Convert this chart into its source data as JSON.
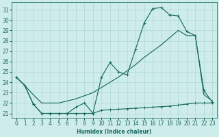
{
  "xlabel": "Humidex (Indice chaleur)",
  "ylabel": "",
  "bg_color": "#ceecea",
  "grid_color": "#aed8d4",
  "line_color": "#1a6b60",
  "x_ticks": [
    0,
    1,
    2,
    3,
    4,
    5,
    6,
    7,
    8,
    9,
    10,
    11,
    12,
    13,
    14,
    15,
    16,
    17,
    18,
    19,
    20,
    21,
    22,
    23
  ],
  "y_ticks": [
    21,
    22,
    23,
    24,
    25,
    26,
    27,
    28,
    29,
    30,
    31
  ],
  "ylim": [
    20.6,
    31.7
  ],
  "xlim": [
    -0.5,
    23.5
  ],
  "curve1_x": [
    0,
    1,
    2,
    3,
    4,
    5,
    6,
    7,
    8,
    9,
    10,
    11,
    12,
    13,
    14,
    15,
    16,
    17,
    18,
    19,
    20,
    21,
    22,
    23
  ],
  "curve1_y": [
    24.5,
    23.7,
    21.9,
    21.0,
    21.0,
    21.0,
    21.0,
    21.6,
    22.0,
    21.0,
    21.3,
    21.35,
    21.4,
    21.45,
    21.5,
    21.55,
    21.6,
    21.65,
    21.7,
    21.8,
    21.9,
    22.0,
    22.0,
    22.0
  ],
  "curve2_x": [
    0,
    1,
    2,
    3,
    4,
    5,
    6,
    7,
    8,
    9,
    10,
    11,
    12,
    13,
    14,
    15,
    16,
    17,
    18,
    19,
    20,
    21,
    22,
    23
  ],
  "curve2_y": [
    24.5,
    23.7,
    21.9,
    21.0,
    21.0,
    21.0,
    21.0,
    21.0,
    21.0,
    21.0,
    24.5,
    25.9,
    25.0,
    24.7,
    27.2,
    29.7,
    31.1,
    31.2,
    30.5,
    30.4,
    28.9,
    28.5,
    23.2,
    22.1
  ],
  "curve3_x": [
    0,
    1,
    2,
    3,
    4,
    5,
    6,
    7,
    8,
    9,
    10,
    11,
    12,
    13,
    14,
    15,
    16,
    17,
    18,
    19,
    20,
    21,
    22,
    23
  ],
  "curve3_y": [
    24.5,
    23.7,
    22.8,
    22.0,
    22.0,
    22.0,
    22.2,
    22.4,
    22.7,
    23.0,
    23.5,
    24.0,
    24.5,
    25.1,
    25.7,
    26.4,
    27.0,
    27.6,
    28.3,
    29.0,
    28.5,
    28.5,
    22.8,
    22.2
  ]
}
